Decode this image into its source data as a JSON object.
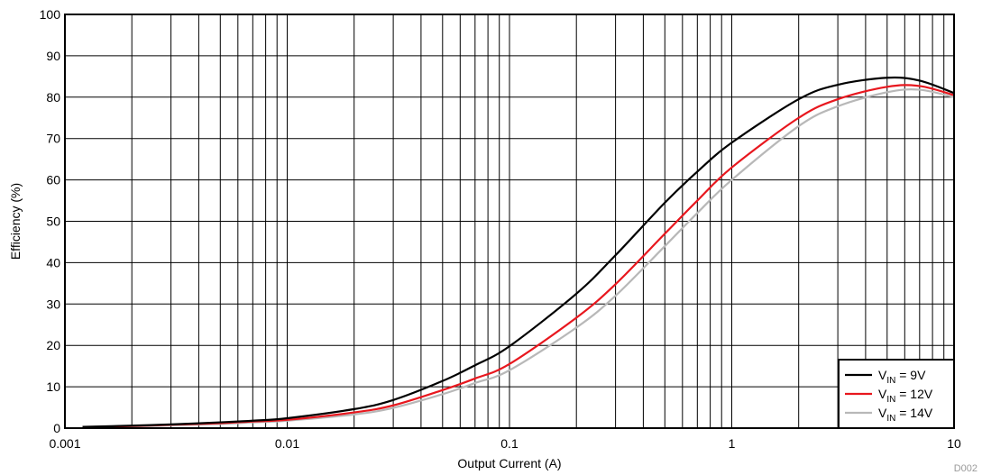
{
  "chart_data": {
    "type": "line",
    "xlabel": "Output Current (A)",
    "ylabel": "Efficiency (%)",
    "xscale": "log",
    "xlim": [
      0.001,
      10
    ],
    "ylim": [
      0,
      100
    ],
    "x_ticks": [
      0.001,
      0.01,
      0.1,
      1,
      10
    ],
    "x_tick_labels": [
      "0.001",
      "0.01",
      "0.1",
      "1",
      "10"
    ],
    "y_ticks": [
      0,
      10,
      20,
      30,
      40,
      50,
      60,
      70,
      80,
      90,
      100
    ],
    "y_tick_labels": [
      "0",
      "10",
      "20",
      "30",
      "40",
      "50",
      "60",
      "70",
      "80",
      "90",
      "100"
    ],
    "grid": true,
    "legend_position": "bottom-right",
    "figure_id": "D002",
    "series": [
      {
        "name_main": "V",
        "name_sub": "IN",
        "name_rest": " = 9V",
        "color": "#000000",
        "x": [
          0.0012,
          0.002,
          0.003,
          0.005,
          0.007,
          0.01,
          0.02,
          0.03,
          0.05,
          0.07,
          0.1,
          0.2,
          0.3,
          0.5,
          0.7,
          1,
          2,
          3,
          5,
          7,
          10
        ],
        "y": [
          0.3,
          0.6,
          0.9,
          1.4,
          1.8,
          2.4,
          4.6,
          6.8,
          11.4,
          15.2,
          19.8,
          32.5,
          41.8,
          54.5,
          62.0,
          69.0,
          79.5,
          83.0,
          84.7,
          84.0,
          81.0
        ]
      },
      {
        "name_main": "V",
        "name_sub": "IN",
        "name_rest": " = 12V",
        "color": "#e8171e",
        "x": [
          0.0012,
          0.002,
          0.003,
          0.005,
          0.007,
          0.01,
          0.02,
          0.03,
          0.05,
          0.07,
          0.1,
          0.2,
          0.3,
          0.5,
          0.7,
          1,
          2,
          3,
          5,
          7,
          10
        ],
        "y": [
          0.2,
          0.5,
          0.8,
          1.2,
          1.6,
          2.0,
          3.8,
          5.5,
          9.2,
          12.0,
          15.5,
          26.7,
          34.8,
          47.0,
          55.0,
          63.0,
          75.0,
          79.5,
          82.5,
          82.7,
          80.5
        ]
      },
      {
        "name_main": "V",
        "name_sub": "IN",
        "name_rest": " = 14V",
        "color": "#b8b8b8",
        "x": [
          0.0012,
          0.002,
          0.003,
          0.005,
          0.007,
          0.01,
          0.02,
          0.03,
          0.05,
          0.07,
          0.1,
          0.2,
          0.3,
          0.5,
          0.7,
          1,
          2,
          3,
          5,
          7,
          10
        ],
        "y": [
          0.2,
          0.4,
          0.7,
          1.0,
          1.4,
          1.8,
          3.3,
          4.9,
          8.2,
          10.9,
          14.0,
          24.3,
          32.0,
          44.0,
          52.0,
          60.0,
          73.0,
          77.8,
          81.2,
          81.8,
          80.0
        ]
      }
    ]
  }
}
